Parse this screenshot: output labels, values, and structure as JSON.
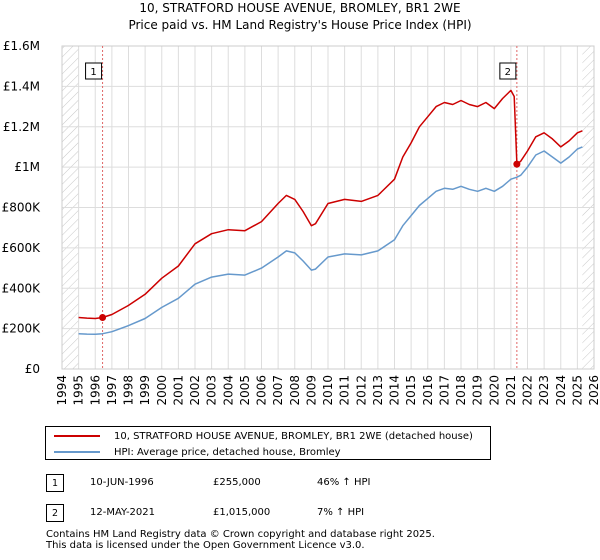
{
  "chart_data": {
    "type": "line",
    "title": "10, STRATFORD HOUSE AVENUE, BROMLEY, BR1 2WE",
    "subtitle": "Price paid vs. HM Land Registry's House Price Index (HPI)",
    "xlim": [
      1994.0,
      2026.0
    ],
    "ylim": [
      0,
      1600000
    ],
    "x_ticks": [
      1994,
      1995,
      1996,
      1997,
      1998,
      1999,
      2000,
      2001,
      2002,
      2003,
      2004,
      2005,
      2006,
      2007,
      2008,
      2009,
      2010,
      2011,
      2012,
      2013,
      2014,
      2015,
      2016,
      2017,
      2018,
      2019,
      2020,
      2021,
      2022,
      2023,
      2024,
      2025,
      2026
    ],
    "y_ticks": [
      {
        "value": 0,
        "label": "£0"
      },
      {
        "value": 200000,
        "label": "£200K"
      },
      {
        "value": 400000,
        "label": "£400K"
      },
      {
        "value": 600000,
        "label": "£600K"
      },
      {
        "value": 800000,
        "label": "£800K"
      },
      {
        "value": 1000000,
        "label": "£1M"
      },
      {
        "value": 1200000,
        "label": "£1.2M"
      },
      {
        "value": 1400000,
        "label": "£1.4M"
      },
      {
        "value": 1600000,
        "label": "£1.6M"
      }
    ],
    "series": [
      {
        "name": "10, STRATFORD HOUSE AVENUE, BROMLEY, BR1 2WE (detached house)",
        "color": "#cc0000",
        "x": [
          1995.0,
          1995.5,
          1996.0,
          1996.44,
          1997.0,
          1998.0,
          1999.0,
          2000.0,
          2001.0,
          2002.0,
          2003.0,
          2004.0,
          2005.0,
          2006.0,
          2007.0,
          2007.5,
          2008.0,
          2008.5,
          2009.0,
          2009.25,
          2010.0,
          2011.0,
          2012.0,
          2013.0,
          2014.0,
          2014.5,
          2015.0,
          2015.5,
          2016.0,
          2016.5,
          2017.0,
          2017.5,
          2018.0,
          2018.5,
          2019.0,
          2019.5,
          2020.0,
          2020.5,
          2021.0,
          2021.2,
          2021.36,
          2021.6,
          2022.0,
          2022.5,
          2023.0,
          2023.5,
          2024.0,
          2024.5,
          2025.0,
          2025.3
        ],
        "values": [
          255000,
          252000,
          250000,
          255000,
          270000,
          315000,
          370000,
          450000,
          510000,
          620000,
          670000,
          690000,
          685000,
          730000,
          820000,
          860000,
          840000,
          780000,
          710000,
          720000,
          820000,
          840000,
          830000,
          860000,
          940000,
          1050000,
          1120000,
          1200000,
          1250000,
          1300000,
          1320000,
          1310000,
          1330000,
          1310000,
          1300000,
          1320000,
          1290000,
          1340000,
          1380000,
          1350000,
          1015000,
          1030000,
          1080000,
          1150000,
          1170000,
          1140000,
          1100000,
          1130000,
          1170000,
          1180000
        ]
      },
      {
        "name": "HPI: Average price, detached house, Bromley",
        "color": "#6699cc",
        "x": [
          1995.0,
          1995.5,
          1996.0,
          1996.44,
          1997.0,
          1998.0,
          1999.0,
          2000.0,
          2001.0,
          2002.0,
          2003.0,
          2004.0,
          2005.0,
          2006.0,
          2007.0,
          2007.5,
          2008.0,
          2008.5,
          2009.0,
          2009.25,
          2010.0,
          2011.0,
          2012.0,
          2013.0,
          2014.0,
          2014.5,
          2015.0,
          2015.5,
          2016.0,
          2016.5,
          2017.0,
          2017.5,
          2018.0,
          2018.5,
          2019.0,
          2019.5,
          2020.0,
          2020.5,
          2021.0,
          2021.36,
          2021.6,
          2022.0,
          2022.5,
          2023.0,
          2023.5,
          2024.0,
          2024.5,
          2025.0,
          2025.3
        ],
        "values": [
          175000,
          173000,
          172000,
          175000,
          185000,
          215000,
          250000,
          305000,
          350000,
          420000,
          455000,
          470000,
          465000,
          500000,
          555000,
          585000,
          575000,
          535000,
          490000,
          495000,
          555000,
          570000,
          565000,
          585000,
          640000,
          710000,
          760000,
          810000,
          845000,
          880000,
          895000,
          890000,
          905000,
          890000,
          880000,
          895000,
          880000,
          905000,
          940000,
          950000,
          960000,
          1000000,
          1060000,
          1080000,
          1050000,
          1020000,
          1050000,
          1090000,
          1100000
        ]
      }
    ],
    "sales": [
      {
        "id": "1",
        "x": 1996.44,
        "price": 255000,
        "date": "10-JUN-1996",
        "price_label": "£255,000",
        "hpi_label": "46% ↑ HPI"
      },
      {
        "id": "2",
        "x": 2021.36,
        "price": 1015000,
        "date": "12-MAY-2021",
        "price_label": "£1,015,000",
        "hpi_label": "7% ↑ HPI"
      }
    ],
    "hatch_before": 1995.0,
    "hatch_after": 2025.3
  },
  "footer": {
    "line1": "Contains HM Land Registry data © Crown copyright and database right 2025.",
    "line2": "This data is licensed under the Open Government Licence v3.0."
  }
}
